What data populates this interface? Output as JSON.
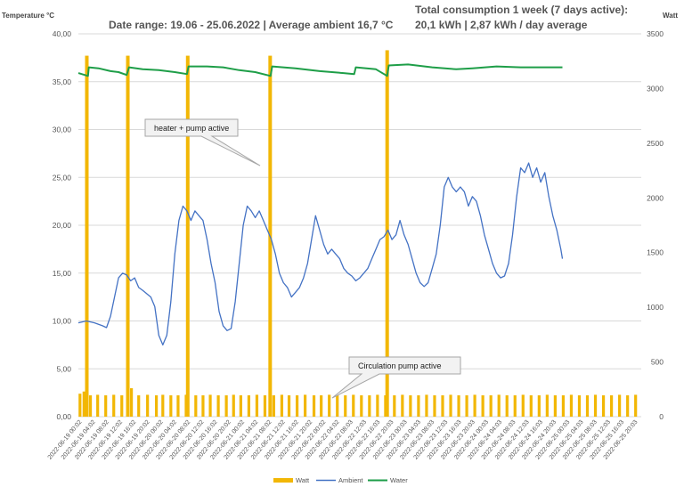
{
  "chart_data": {
    "type": "line",
    "header": {
      "date_range": "Date range: 19.06 - 25.06.2022 | Average ambient 16,7 °C",
      "consumption_line1": "Total consumption 1 week (7 days active):",
      "consumption_line2": "20,1 kWh | 2,87 kWh / day average"
    },
    "y_left": {
      "label": "Temperature °C",
      "min": 0,
      "max": 40,
      "ticks": [
        "0,00",
        "5,00",
        "10,00",
        "15,00",
        "20,00",
        "25,00",
        "30,00",
        "35,00",
        "40,00"
      ]
    },
    "y_right": {
      "label": "Watt",
      "min": 0,
      "max": 3500,
      "ticks": [
        "0",
        "500",
        "1000",
        "1500",
        "2000",
        "2500",
        "3000",
        "3500"
      ]
    },
    "x": {
      "min": 0,
      "max": 7,
      "unit": "days from 2022-06-19 00:00",
      "tick_labels": [
        "2022-06-19 00:02",
        "2022-06-19 04:02",
        "2022-06-19 08:02",
        "2022-06-19 12:02",
        "2022-06-19 16:02",
        "2022-06-19 20:02",
        "2022-06-20 00:02",
        "2022-06-20 04:02",
        "2022-06-20 08:02",
        "2022-06-20 12:02",
        "2022-06-20 16:02",
        "2022-06-20 20:02",
        "2022-06-21 00:02",
        "2022-06-21 04:02",
        "2022-06-21 08:02",
        "2022-06-21 12:02",
        "2022-06-21 16:02",
        "2022-06-21 20:02",
        "2022-06-22 00:02",
        "2022-06-22 04:02",
        "2022-06-22 08:03",
        "2022-06-22 12:03",
        "2022-06-22 16:03",
        "2022-06-22 20:03",
        "2022-06-23 00:03",
        "2022-06-23 04:03",
        "2022-06-23 08:03",
        "2022-06-23 12:03",
        "2022-06-23 16:03",
        "2022-06-23 20:03",
        "2022-06-24 00:03",
        "2022-06-24 04:03",
        "2022-06-24 08:03",
        "2022-06-24 12:03",
        "2022-06-24 16:03",
        "2022-06-24 20:03",
        "2022-06-25 00:03",
        "2022-06-25 04:03",
        "2022-06-25 08:03",
        "2022-06-25 12:03",
        "2022-06-25 16:03",
        "2022-06-25 20:03"
      ]
    },
    "series": [
      {
        "name": "Watt",
        "axis": "right",
        "color": "#f2b705",
        "kind": "bars",
        "heater_spikes": [
          [
            0.105,
            3300
          ],
          [
            0.615,
            3300
          ],
          [
            1.36,
            3300
          ],
          [
            2.385,
            3300
          ],
          [
            3.84,
            3350
          ]
        ],
        "pump_pulses": [
          [
            0.02,
            210
          ],
          [
            0.07,
            230
          ],
          [
            0.15,
            195
          ],
          [
            0.24,
            200
          ],
          [
            0.34,
            195
          ],
          [
            0.44,
            200
          ],
          [
            0.54,
            195
          ],
          [
            0.66,
            260
          ],
          [
            0.75,
            195
          ],
          [
            0.86,
            200
          ],
          [
            0.97,
            195
          ],
          [
            1.05,
            200
          ],
          [
            1.15,
            195
          ],
          [
            1.24,
            195
          ],
          [
            1.34,
            200
          ],
          [
            1.46,
            195
          ],
          [
            1.55,
            195
          ],
          [
            1.64,
            200
          ],
          [
            1.74,
            195
          ],
          [
            1.84,
            195
          ],
          [
            1.93,
            200
          ],
          [
            2.02,
            195
          ],
          [
            2.12,
            195
          ],
          [
            2.22,
            200
          ],
          [
            2.32,
            195
          ],
          [
            2.43,
            195
          ],
          [
            2.53,
            200
          ],
          [
            2.62,
            195
          ],
          [
            2.72,
            195
          ],
          [
            2.82,
            200
          ],
          [
            2.93,
            195
          ],
          [
            3.02,
            195
          ],
          [
            3.12,
            200
          ],
          [
            3.22,
            195
          ],
          [
            3.32,
            195
          ],
          [
            3.42,
            200
          ],
          [
            3.52,
            195
          ],
          [
            3.62,
            195
          ],
          [
            3.72,
            200
          ],
          [
            3.82,
            195
          ],
          [
            3.93,
            195
          ],
          [
            4.03,
            200
          ],
          [
            4.13,
            195
          ],
          [
            4.23,
            195
          ],
          [
            4.33,
            200
          ],
          [
            4.43,
            195
          ],
          [
            4.53,
            195
          ],
          [
            4.63,
            200
          ],
          [
            4.73,
            195
          ],
          [
            4.83,
            195
          ],
          [
            4.93,
            200
          ],
          [
            5.03,
            195
          ],
          [
            5.13,
            195
          ],
          [
            5.23,
            200
          ],
          [
            5.33,
            195
          ],
          [
            5.43,
            195
          ],
          [
            5.53,
            200
          ],
          [
            5.63,
            195
          ],
          [
            5.73,
            195
          ],
          [
            5.83,
            200
          ],
          [
            5.93,
            195
          ],
          [
            6.03,
            195
          ],
          [
            6.13,
            200
          ],
          [
            6.23,
            195
          ],
          [
            6.33,
            195
          ],
          [
            6.43,
            200
          ],
          [
            6.53,
            195
          ],
          [
            6.63,
            195
          ],
          [
            6.73,
            200
          ],
          [
            6.83,
            195
          ],
          [
            6.93,
            200
          ]
        ]
      },
      {
        "name": "Ambient",
        "axis": "left",
        "color": "#4472c4",
        "kind": "line",
        "points": [
          [
            0,
            9.8
          ],
          [
            0.1,
            10
          ],
          [
            0.2,
            9.8
          ],
          [
            0.3,
            9.5
          ],
          [
            0.35,
            9.3
          ],
          [
            0.4,
            10.5
          ],
          [
            0.45,
            12.5
          ],
          [
            0.5,
            14.5
          ],
          [
            0.55,
            15
          ],
          [
            0.6,
            14.8
          ],
          [
            0.65,
            14.2
          ],
          [
            0.7,
            14.5
          ],
          [
            0.75,
            13.5
          ],
          [
            0.8,
            13.2
          ],
          [
            0.9,
            12.5
          ],
          [
            0.95,
            11.5
          ],
          [
            1.0,
            8.5
          ],
          [
            1.05,
            7.5
          ],
          [
            1.1,
            8.5
          ],
          [
            1.15,
            12
          ],
          [
            1.2,
            17
          ],
          [
            1.25,
            20.5
          ],
          [
            1.3,
            22
          ],
          [
            1.35,
            21.5
          ],
          [
            1.4,
            20.5
          ],
          [
            1.45,
            21.5
          ],
          [
            1.5,
            21
          ],
          [
            1.55,
            20.5
          ],
          [
            1.6,
            18.5
          ],
          [
            1.65,
            16
          ],
          [
            1.7,
            14
          ],
          [
            1.75,
            11
          ],
          [
            1.8,
            9.5
          ],
          [
            1.85,
            9
          ],
          [
            1.9,
            9.2
          ],
          [
            1.95,
            12
          ],
          [
            2.0,
            16
          ],
          [
            2.05,
            20
          ],
          [
            2.1,
            22
          ],
          [
            2.15,
            21.5
          ],
          [
            2.2,
            20.8
          ],
          [
            2.25,
            21.5
          ],
          [
            2.3,
            20.5
          ],
          [
            2.35,
            19.5
          ],
          [
            2.4,
            18.5
          ],
          [
            2.45,
            17
          ],
          [
            2.5,
            15
          ],
          [
            2.55,
            14
          ],
          [
            2.6,
            13.5
          ],
          [
            2.65,
            12.5
          ],
          [
            2.7,
            13
          ],
          [
            2.75,
            13.5
          ],
          [
            2.8,
            14.5
          ],
          [
            2.85,
            16
          ],
          [
            2.9,
            18.5
          ],
          [
            2.95,
            21
          ],
          [
            3.0,
            19.5
          ],
          [
            3.05,
            18
          ],
          [
            3.1,
            17
          ],
          [
            3.15,
            17.5
          ],
          [
            3.2,
            17
          ],
          [
            3.25,
            16.5
          ],
          [
            3.3,
            15.5
          ],
          [
            3.35,
            15
          ],
          [
            3.4,
            14.7
          ],
          [
            3.45,
            14.2
          ],
          [
            3.5,
            14.5
          ],
          [
            3.55,
            15
          ],
          [
            3.6,
            15.5
          ],
          [
            3.65,
            16.5
          ],
          [
            3.7,
            17.5
          ],
          [
            3.75,
            18.5
          ],
          [
            3.8,
            18.8
          ],
          [
            3.85,
            19.5
          ],
          [
            3.9,
            18.5
          ],
          [
            3.95,
            19
          ],
          [
            4.0,
            20.5
          ],
          [
            4.05,
            19
          ],
          [
            4.1,
            18
          ],
          [
            4.15,
            16.5
          ],
          [
            4.2,
            15
          ],
          [
            4.25,
            14
          ],
          [
            4.3,
            13.6
          ],
          [
            4.35,
            14
          ],
          [
            4.4,
            15.5
          ],
          [
            4.45,
            17
          ],
          [
            4.5,
            20
          ],
          [
            4.55,
            24
          ],
          [
            4.6,
            25
          ],
          [
            4.65,
            24
          ],
          [
            4.7,
            23.5
          ],
          [
            4.75,
            24
          ],
          [
            4.8,
            23.5
          ],
          [
            4.85,
            22
          ],
          [
            4.9,
            23
          ],
          [
            4.95,
            22.5
          ],
          [
            5.0,
            21
          ],
          [
            5.05,
            19
          ],
          [
            5.1,
            17.5
          ],
          [
            5.15,
            16
          ],
          [
            5.2,
            15
          ],
          [
            5.25,
            14.5
          ],
          [
            5.3,
            14.7
          ],
          [
            5.35,
            16
          ],
          [
            5.4,
            19
          ],
          [
            5.45,
            23
          ],
          [
            5.5,
            26
          ],
          [
            5.55,
            25.5
          ],
          [
            5.6,
            26.5
          ],
          [
            5.65,
            25
          ],
          [
            5.7,
            26
          ],
          [
            5.75,
            24.5
          ],
          [
            5.8,
            25.5
          ],
          [
            5.85,
            23
          ],
          [
            5.9,
            21
          ],
          [
            5.95,
            19.5
          ],
          [
            6.0,
            17.5
          ],
          [
            6.02,
            16.5
          ]
        ]
      },
      {
        "name": "Water",
        "axis": "left",
        "color": "#1e9e48",
        "kind": "line",
        "points": [
          [
            0,
            35.9
          ],
          [
            0.12,
            35.6
          ],
          [
            0.13,
            36.5
          ],
          [
            0.25,
            36.4
          ],
          [
            0.4,
            36.1
          ],
          [
            0.5,
            36
          ],
          [
            0.6,
            35.7
          ],
          [
            0.63,
            36.5
          ],
          [
            0.8,
            36.3
          ],
          [
            1.0,
            36.2
          ],
          [
            1.2,
            36
          ],
          [
            1.35,
            35.8
          ],
          [
            1.37,
            36.6
          ],
          [
            1.6,
            36.6
          ],
          [
            1.8,
            36.5
          ],
          [
            2.0,
            36.2
          ],
          [
            2.2,
            36
          ],
          [
            2.39,
            35.6
          ],
          [
            2.41,
            36.6
          ],
          [
            2.7,
            36.4
          ],
          [
            3.0,
            36.1
          ],
          [
            3.3,
            35.9
          ],
          [
            3.43,
            35.8
          ],
          [
            3.45,
            36.5
          ],
          [
            3.7,
            36.3
          ],
          [
            3.84,
            35.6
          ],
          [
            3.86,
            36.7
          ],
          [
            4.1,
            36.8
          ],
          [
            4.4,
            36.5
          ],
          [
            4.7,
            36.3
          ],
          [
            4.9,
            36.4
          ],
          [
            5.2,
            36.6
          ],
          [
            5.5,
            36.5
          ],
          [
            6.02,
            36.5
          ]
        ]
      }
    ],
    "legend": [
      "Watt",
      "Ambient",
      "Water"
    ],
    "legend_position": "bottom",
    "annotations": [
      {
        "text": "heater + pump active"
      },
      {
        "text": "Circulation pump active"
      }
    ]
  }
}
